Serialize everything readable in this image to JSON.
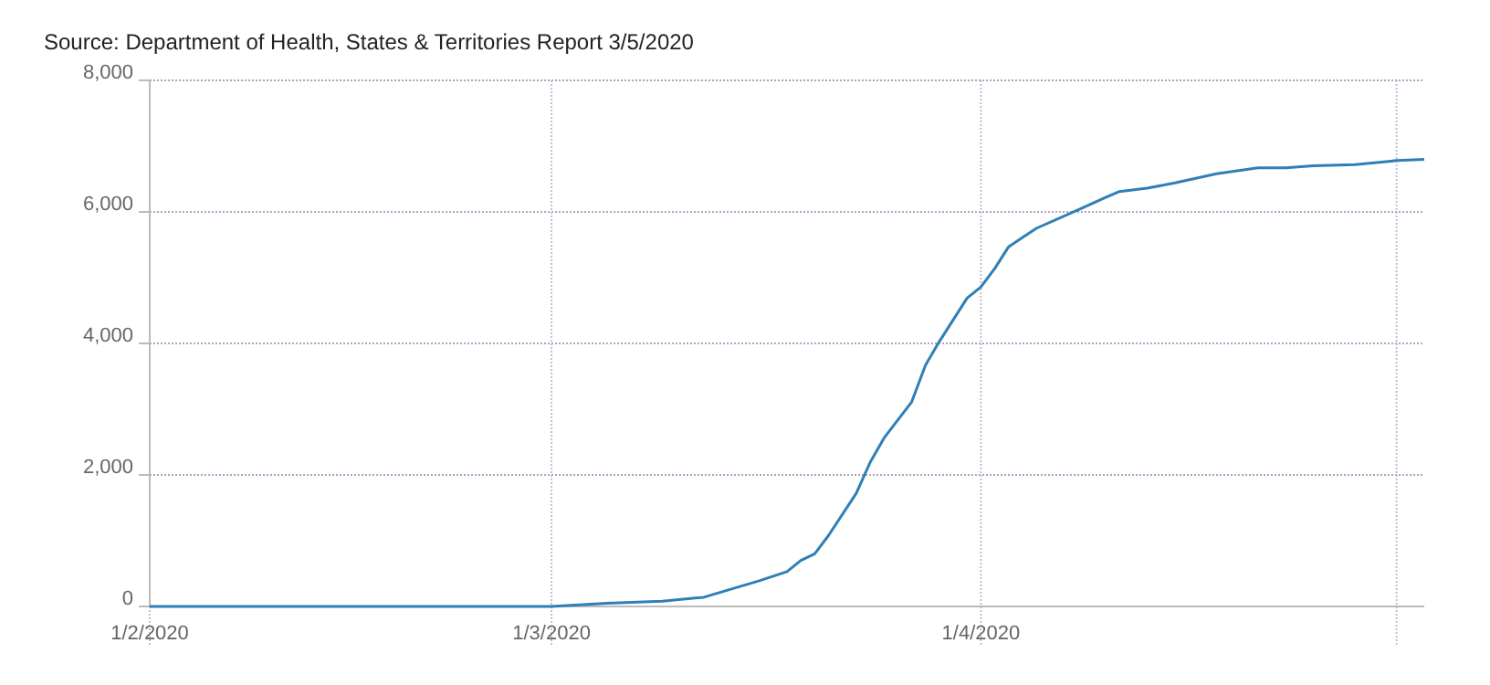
{
  "chart_data": {
    "type": "line",
    "annotations": [
      "Source: Department of Health, States & Territories Report 3/5/2020"
    ],
    "x": [
      "2020-02-01",
      "2020-02-15",
      "2020-03-01",
      "2020-03-05",
      "2020-03-09",
      "2020-03-12",
      "2020-03-16",
      "2020-03-18",
      "2020-03-19",
      "2020-03-20",
      "2020-03-21",
      "2020-03-23",
      "2020-03-24",
      "2020-03-25",
      "2020-03-27",
      "2020-03-28",
      "2020-03-29",
      "2020-03-30",
      "2020-03-31",
      "2020-04-01",
      "2020-04-02",
      "2020-04-03",
      "2020-04-04",
      "2020-04-05",
      "2020-04-08",
      "2020-04-10",
      "2020-04-11",
      "2020-04-13",
      "2020-04-15",
      "2020-04-18",
      "2020-04-21",
      "2020-04-23",
      "2020-04-25",
      "2020-04-28",
      "2020-05-01",
      "2020-05-03"
    ],
    "series": [
      {
        "color": "#2f7fb6",
        "values": [
          0,
          0,
          0,
          50,
          80,
          140,
          390,
          530,
          700,
          800,
          1080,
          1720,
          2190,
          2560,
          3110,
          3670,
          4030,
          4360,
          4690,
          4860,
          5140,
          5470,
          5610,
          5750,
          6030,
          6220,
          6310,
          6360,
          6440,
          6580,
          6670,
          6670,
          6700,
          6720,
          6780,
          6800
        ]
      }
    ],
    "xlim": [
      "2020-02-01",
      "2020-05-03"
    ],
    "xticks": [
      {
        "value": "2020-02-01",
        "label": "1/2/2020"
      },
      {
        "value": "2020-03-01",
        "label": "1/3/2020"
      },
      {
        "value": "2020-04-01",
        "label": "1/4/2020"
      },
      {
        "value": "2020-05-01",
        "label": null
      }
    ],
    "ylim": [
      0,
      8000
    ],
    "yticks": [
      {
        "value": 0,
        "label": "0"
      },
      {
        "value": 2000,
        "label": "2,000"
      },
      {
        "value": 4000,
        "label": "4,000"
      },
      {
        "value": 6000,
        "label": "6,000"
      },
      {
        "value": 8000,
        "label": "8,000"
      }
    ],
    "grid": true,
    "marker": "none",
    "line_style": "solid"
  }
}
